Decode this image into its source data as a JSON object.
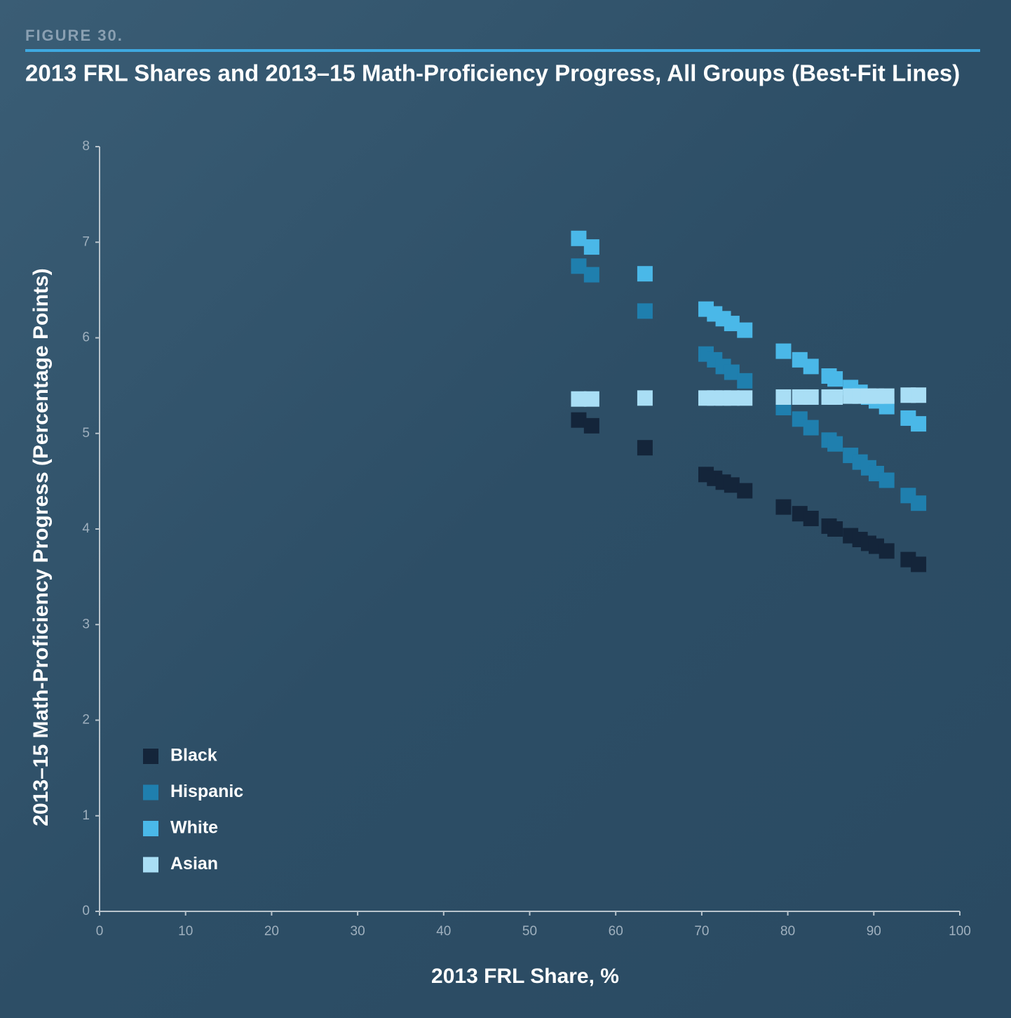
{
  "figure_label": "FIGURE 30.",
  "chart_data": {
    "type": "scatter",
    "title": "2013 FRL Shares and 2013–15 Math-Proficiency Progress, All Groups (Best-Fit Lines)",
    "x_label": "2013 FRL Share, %",
    "y_label": "2013–15 Math-Proficiency Progress (Percentage Points)",
    "x": [
      55.7,
      57.2,
      63.4,
      70.5,
      71.5,
      72.5,
      73.5,
      75.0,
      79.5,
      81.4,
      82.7,
      84.8,
      85.5,
      87.3,
      88.4,
      89.4,
      90.3,
      91.5,
      94.0,
      95.2
    ],
    "series": [
      {
        "name": "Black",
        "color": "#14253a",
        "values": [
          5.14,
          5.08,
          4.85,
          4.57,
          4.53,
          4.49,
          4.46,
          4.4,
          4.23,
          4.16,
          4.11,
          4.03,
          4.0,
          3.93,
          3.89,
          3.85,
          3.82,
          3.77,
          3.68,
          3.63
        ]
      },
      {
        "name": "Hispanic",
        "color": "#1f7fae",
        "values": [
          6.75,
          6.66,
          6.28,
          5.83,
          5.77,
          5.7,
          5.64,
          5.55,
          5.27,
          5.15,
          5.06,
          4.93,
          4.89,
          4.77,
          4.7,
          4.64,
          4.58,
          4.51,
          4.35,
          4.27
        ]
      },
      {
        "name": "White",
        "color": "#4ab8e8",
        "values": [
          7.04,
          6.95,
          6.67,
          6.3,
          6.25,
          6.2,
          6.15,
          6.08,
          5.86,
          5.77,
          5.7,
          5.6,
          5.57,
          5.48,
          5.43,
          5.38,
          5.34,
          5.28,
          5.16,
          5.1
        ]
      },
      {
        "name": "Asian",
        "color": "#a9def5",
        "values": [
          5.36,
          5.36,
          5.37,
          5.37,
          5.37,
          5.37,
          5.37,
          5.37,
          5.38,
          5.38,
          5.38,
          5.38,
          5.38,
          5.39,
          5.39,
          5.39,
          5.39,
          5.39,
          5.4,
          5.4
        ]
      }
    ],
    "xlim": [
      0,
      100
    ],
    "xticks": [
      0,
      10,
      20,
      30,
      40,
      50,
      60,
      70,
      80,
      90,
      100
    ],
    "ylim": [
      0,
      8
    ],
    "yticks": [
      0,
      1,
      2,
      3,
      4,
      5,
      6,
      7,
      8
    ],
    "legend": "lower left"
  }
}
